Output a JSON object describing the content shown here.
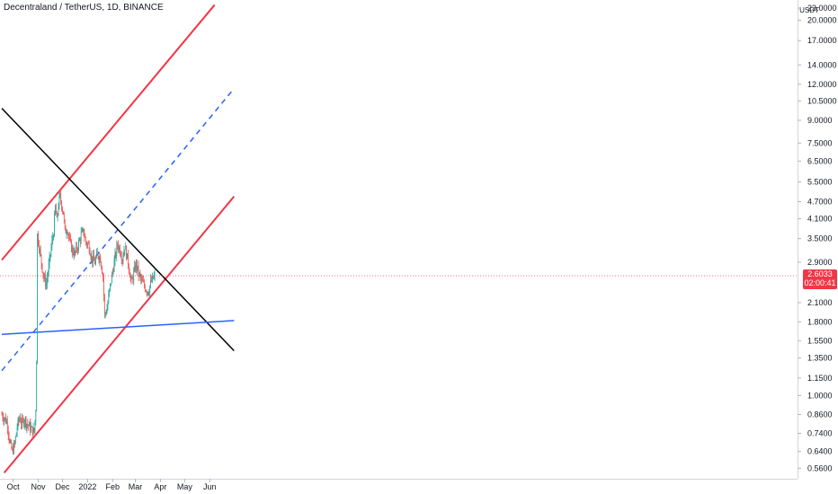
{
  "header": {
    "title": "Decentraland / TetherUS, 1D, BINANCE"
  },
  "colors": {
    "up": "#26a69a",
    "down": "#ef5350",
    "channel": "#f23645",
    "trend_black": "#000000",
    "support_blue": "#2962ff",
    "mid_dashed": "#2962ff",
    "price_tag": "#f23645"
  },
  "chart_data": {
    "type": "candlestick",
    "symbol": "Decentraland / TetherUS",
    "interval": "1D",
    "exchange": "BINANCE",
    "y_scale": "log",
    "y_unit": "USDT",
    "ylim": [
      0.53,
      23.0
    ],
    "x_tick_labels": [
      "Oct",
      "Nov",
      "Dec",
      "2022",
      "Feb",
      "Mar",
      "Apr",
      "May",
      "Jun"
    ],
    "y_tick_labels": [
      "23.0000",
      "20.0000",
      "17.0000",
      "14.0000",
      "12.0000",
      "10.5000",
      "9.0000",
      "7.5000",
      "6.5000",
      "5.5000",
      "4.7000",
      "4.1000",
      "3.5000",
      "2.9000",
      "2.1000",
      "1.8000",
      "1.5500",
      "1.3500",
      "1.1500",
      "1.0000",
      "0.8600",
      "0.7400",
      "0.6400",
      "0.5600"
    ],
    "last_price": "2.6033",
    "countdown": "02:00:41",
    "price_path": [
      [
        "2021-09-17",
        0.86
      ],
      [
        "2021-09-21",
        0.83
      ],
      [
        "2021-09-24",
        0.8
      ],
      [
        "2021-09-27",
        0.68
      ],
      [
        "2021-09-30",
        0.64
      ],
      [
        "2021-10-03",
        0.68
      ],
      [
        "2021-10-06",
        0.78
      ],
      [
        "2021-10-09",
        0.84
      ],
      [
        "2021-10-12",
        0.8
      ],
      [
        "2021-10-15",
        0.83
      ],
      [
        "2021-10-18",
        0.8
      ],
      [
        "2021-10-21",
        0.78
      ],
      [
        "2021-10-24",
        0.76
      ],
      [
        "2021-10-27",
        0.75
      ],
      [
        "2021-10-29",
        0.9
      ],
      [
        "2021-10-30",
        1.35
      ],
      [
        "2021-10-31",
        3.6
      ],
      [
        "2021-11-02",
        3.3
      ],
      [
        "2021-11-05",
        2.9
      ],
      [
        "2021-11-08",
        2.55
      ],
      [
        "2021-11-11",
        2.45
      ],
      [
        "2021-11-14",
        2.8
      ],
      [
        "2021-11-17",
        3.25
      ],
      [
        "2021-11-20",
        3.7
      ],
      [
        "2021-11-22",
        4.5
      ],
      [
        "2021-11-24",
        4.0
      ],
      [
        "2021-11-26",
        4.6
      ],
      [
        "2021-11-28",
        4.9
      ],
      [
        "2021-11-30",
        4.6
      ],
      [
        "2021-12-02",
        4.3
      ],
      [
        "2021-12-04",
        3.7
      ],
      [
        "2021-12-07",
        3.8
      ],
      [
        "2021-12-10",
        3.4
      ],
      [
        "2021-12-13",
        3.2
      ],
      [
        "2021-12-16",
        3.1
      ],
      [
        "2021-12-20",
        3.3
      ],
      [
        "2021-12-24",
        3.6
      ],
      [
        "2021-12-27",
        3.7
      ],
      [
        "2021-12-30",
        3.4
      ],
      [
        "2022-01-03",
        3.3
      ],
      [
        "2022-01-06",
        3.0
      ],
      [
        "2022-01-10",
        2.9
      ],
      [
        "2022-01-13",
        3.1
      ],
      [
        "2022-01-17",
        3.0
      ],
      [
        "2022-01-20",
        2.6
      ],
      [
        "2022-01-22",
        1.9
      ],
      [
        "2022-01-25",
        2.0
      ],
      [
        "2022-01-28",
        2.3
      ],
      [
        "2022-01-31",
        2.6
      ],
      [
        "2022-02-03",
        2.9
      ],
      [
        "2022-02-07",
        3.35
      ],
      [
        "2022-02-10",
        3.2
      ],
      [
        "2022-02-13",
        3.0
      ],
      [
        "2022-02-16",
        3.3
      ],
      [
        "2022-02-20",
        2.9
      ],
      [
        "2022-02-24",
        2.45
      ],
      [
        "2022-02-27",
        2.65
      ],
      [
        "2022-03-02",
        2.85
      ],
      [
        "2022-03-06",
        2.6
      ],
      [
        "2022-03-10",
        2.45
      ],
      [
        "2022-03-14",
        2.35
      ],
      [
        "2022-03-17",
        2.3
      ],
      [
        "2022-03-20",
        2.45
      ],
      [
        "2022-03-23",
        2.55
      ],
      [
        "2022-03-25",
        2.6033
      ]
    ],
    "trend_lines": [
      {
        "name": "channel-upper",
        "style": "solid",
        "from": [
          "2021-09-17",
          2.95
        ],
        "to": [
          "2022-06-07",
          22.6
        ]
      },
      {
        "name": "channel-middle",
        "style": "dashed",
        "from": [
          "2021-09-17",
          1.22
        ],
        "to": [
          "2022-07-01",
          11.6
        ]
      },
      {
        "name": "channel-lower",
        "style": "solid",
        "from": [
          "2021-09-20",
          0.54
        ],
        "to": [
          "2022-07-01",
          4.9
        ]
      },
      {
        "name": "descending-trendline",
        "style": "solid",
        "from": [
          "2021-09-17",
          9.9
        ],
        "to": [
          "2022-07-01",
          1.43
        ]
      },
      {
        "name": "horizontal-support",
        "style": "solid",
        "from": [
          "2021-09-17",
          1.63
        ],
        "to": [
          "2022-07-01",
          1.82
        ]
      }
    ]
  }
}
